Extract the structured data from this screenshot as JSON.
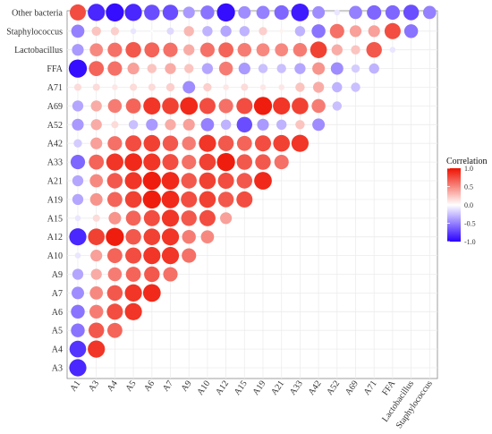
{
  "chart_data": {
    "type": "heatmap",
    "subtype": "correlogram-lower-triangle-circles",
    "variables": [
      "A1",
      "A3",
      "A4",
      "A5",
      "A6",
      "A7",
      "A9",
      "A10",
      "A12",
      "A15",
      "A19",
      "A21",
      "A33",
      "A42",
      "A52",
      "A69",
      "A71",
      "FFA",
      "Lactobacillus",
      "Staphylococcus",
      "Other bacteria"
    ],
    "x_order": [
      "A1",
      "A3",
      "A4",
      "A5",
      "A6",
      "A7",
      "A9",
      "A10",
      "A12",
      "A15",
      "A19",
      "A21",
      "A33",
      "A42",
      "A52",
      "A69",
      "A71",
      "FFA",
      "Lactobacillus",
      "Staphylococcus"
    ],
    "y_order_bottom_to_top": [
      "A3",
      "A4",
      "A5",
      "A6",
      "A7",
      "A9",
      "A10",
      "A12",
      "A15",
      "A19",
      "A21",
      "A33",
      "A42",
      "A52",
      "A69",
      "A71",
      "FFA",
      "Lactobacillus",
      "Staphylococcus",
      "Other bacteria"
    ],
    "legend": {
      "title": "Correlation",
      "ticks": [
        "1.0",
        "0.5",
        "0.0",
        "-0.5",
        "-1.0"
      ],
      "tick_values": [
        1.0,
        0.5,
        0.0,
        -0.5,
        -1.0
      ],
      "range": [
        -1,
        1
      ],
      "placement": "right"
    },
    "colors": {
      "negative": "#2a00ff",
      "zero": "#ffffff",
      "positive": "#ee1100"
    },
    "grid": true,
    "rows": [
      {
        "y": "Other bacteria",
        "values": [
          0.75,
          -0.85,
          -0.95,
          -0.85,
          -0.7,
          -0.7,
          -0.4,
          -0.55,
          -0.95,
          -0.45,
          -0.5,
          -0.6,
          -0.9,
          -0.45,
          -0.1,
          -0.5,
          -0.6,
          -0.6,
          -0.7,
          -0.5
        ]
      },
      {
        "y": "Staphylococcus",
        "values": [
          -0.5,
          0.25,
          0.2,
          -0.1,
          0.0,
          -0.15,
          0.3,
          -0.3,
          -0.35,
          -0.3,
          0.2,
          0.05,
          -0.3,
          -0.55,
          0.6,
          0.4,
          0.4,
          0.75,
          -0.55
        ]
      },
      {
        "y": "Lactobacillus",
        "values": [
          -0.4,
          0.5,
          0.6,
          0.7,
          0.65,
          0.6,
          0.35,
          0.6,
          0.65,
          0.55,
          0.5,
          0.5,
          0.55,
          0.8,
          0.35,
          0.25,
          0.7,
          -0.1
        ]
      },
      {
        "y": "FFA",
        "values": [
          -0.95,
          0.65,
          0.6,
          0.4,
          0.25,
          0.35,
          0.25,
          -0.35,
          0.55,
          -0.4,
          -0.25,
          -0.25,
          -0.35,
          0.45,
          -0.45,
          -0.2,
          -0.3
        ]
      },
      {
        "y": "A71",
        "values": [
          0.15,
          0.15,
          0.1,
          0.15,
          0.15,
          0.2,
          -0.45,
          0.2,
          0.1,
          0.15,
          0.1,
          0.1,
          0.25,
          0.35,
          -0.3,
          -0.25
        ]
      },
      {
        "y": "A69",
        "values": [
          -0.35,
          0.35,
          0.55,
          0.65,
          0.85,
          0.8,
          0.9,
          0.75,
          0.6,
          0.75,
          0.95,
          0.85,
          0.8,
          0.55,
          -0.25
        ]
      },
      {
        "y": "A52",
        "values": [
          -0.4,
          0.35,
          0.15,
          -0.25,
          -0.4,
          0.35,
          0.4,
          -0.5,
          -0.3,
          -0.7,
          -0.4,
          -0.3,
          0.25,
          -0.45
        ]
      },
      {
        "y": "A42",
        "values": [
          -0.2,
          0.4,
          0.6,
          0.75,
          0.8,
          0.7,
          0.55,
          0.85,
          0.7,
          0.65,
          0.75,
          0.8,
          0.85
        ]
      },
      {
        "y": "A33",
        "values": [
          -0.6,
          0.65,
          0.85,
          0.9,
          0.85,
          0.75,
          0.6,
          0.8,
          0.95,
          0.7,
          0.7,
          0.6
        ]
      },
      {
        "y": "A21",
        "values": [
          -0.35,
          0.5,
          0.7,
          0.85,
          0.95,
          0.9,
          0.7,
          0.8,
          0.75,
          0.7,
          0.9
        ]
      },
      {
        "y": "A19",
        "values": [
          -0.35,
          0.45,
          0.65,
          0.8,
          0.95,
          0.9,
          0.75,
          0.8,
          0.7,
          0.75
        ]
      },
      {
        "y": "A15",
        "values": [
          -0.1,
          0.15,
          0.45,
          0.65,
          0.75,
          0.85,
          0.7,
          0.75,
          0.4
        ]
      },
      {
        "y": "A12",
        "values": [
          -0.85,
          0.8,
          0.95,
          0.7,
          0.8,
          0.85,
          0.55,
          0.5
        ]
      },
      {
        "y": "A10",
        "values": [
          -0.1,
          0.4,
          0.65,
          0.75,
          0.85,
          0.85,
          0.6
        ]
      },
      {
        "y": "A9",
        "values": [
          -0.35,
          0.35,
          0.55,
          0.65,
          0.7,
          0.6
        ]
      },
      {
        "y": "A7",
        "values": [
          -0.45,
          0.5,
          0.7,
          0.85,
          0.9
        ]
      },
      {
        "y": "A6",
        "values": [
          -0.55,
          0.55,
          0.75,
          0.85
        ]
      },
      {
        "y": "A5",
        "values": [
          -0.55,
          0.7,
          0.65
        ]
      },
      {
        "y": "A4",
        "values": [
          -0.8,
          0.85
        ]
      },
      {
        "y": "A3",
        "values": [
          -0.85
        ]
      }
    ]
  }
}
